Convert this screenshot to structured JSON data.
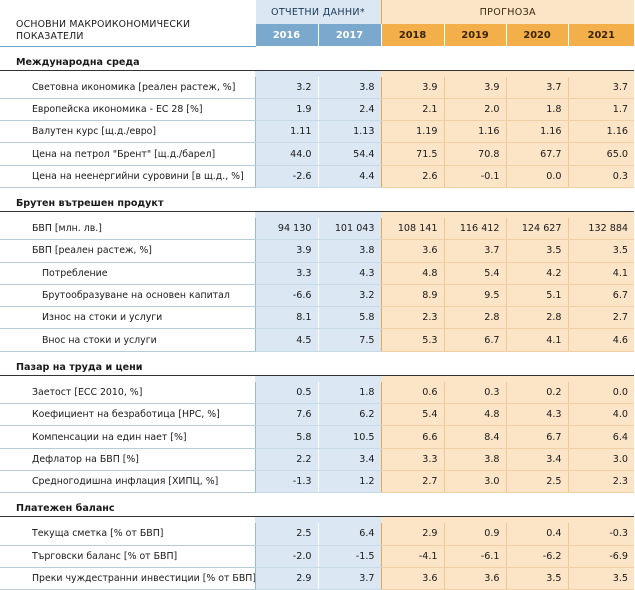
{
  "header": {
    "title": "ОСНОВНИ МАКРОИКОНОМИЧЕСКИ ПОКАЗАТЕЛИ",
    "title_line1": "ОСНОВНИ МАКРОИКОНОМИЧЕСКИ",
    "title_line2": "ПОКАЗАТЕЛИ",
    "actual_label": "ОТЧЕТНИ ДАННИ*",
    "forecast_label": "ПРОГНОЗА",
    "years": [
      "2016",
      "2017",
      "2018",
      "2019",
      "2020",
      "2021"
    ]
  },
  "sections": [
    {
      "title": "Международна среда",
      "rows": [
        {
          "label": "Световна икономика [реален растеж, %]",
          "values": [
            "3.2",
            "3.8",
            "3.9",
            "3.9",
            "3.7",
            "3.7"
          ]
        },
        {
          "label": "Европейска икономика - ЕС 28 [%]",
          "values": [
            "1.9",
            "2.4",
            "2.1",
            "2.0",
            "1.8",
            "1.7"
          ]
        },
        {
          "label": "Валутен курс [щ.д./евро]",
          "values": [
            "1.11",
            "1.13",
            "1.19",
            "1.16",
            "1.16",
            "1.16"
          ]
        },
        {
          "label": "Цена на петрол \"Брент\" [щ.д./барел]",
          "values": [
            "44.0",
            "54.4",
            "71.5",
            "70.8",
            "67.7",
            "65.0"
          ]
        },
        {
          "label": "Цена на неенергийни суровини [в щ.д., %]",
          "values": [
            "-2.6",
            "4.4",
            "2.6",
            "-0.1",
            "0.0",
            "0.3"
          ]
        }
      ]
    },
    {
      "title": "Брутен вътрешен продукт",
      "rows": [
        {
          "label": "БВП [млн. лв.]",
          "values": [
            "94 130",
            "101 043",
            "108 141",
            "116 412",
            "124 627",
            "132 884"
          ]
        },
        {
          "label": "БВП [реален растеж, %]",
          "values": [
            "3.9",
            "3.8",
            "3.6",
            "3.7",
            "3.5",
            "3.5"
          ]
        },
        {
          "label": "Потребление",
          "values": [
            "3.3",
            "4.3",
            "4.8",
            "5.4",
            "4.2",
            "4.1"
          ],
          "sub": true
        },
        {
          "label": "Брутообразуване на основен капитал",
          "values": [
            "-6.6",
            "3.2",
            "8.9",
            "9.5",
            "5.1",
            "6.7"
          ],
          "sub": true
        },
        {
          "label": "Износ на стоки и услуги",
          "values": [
            "8.1",
            "5.8",
            "2.3",
            "2.8",
            "2.8",
            "2.7"
          ],
          "sub": true
        },
        {
          "label": "Внос на стоки и услуги",
          "values": [
            "4.5",
            "7.5",
            "5.3",
            "6.7",
            "4.1",
            "4.6"
          ],
          "sub": true
        }
      ]
    },
    {
      "title": "Пазар на труда и цени",
      "rows": [
        {
          "label": "Заетост [ЕСС 2010, %]",
          "values": [
            "0.5",
            "1.8",
            "0.6",
            "0.3",
            "0.2",
            "0.0"
          ]
        },
        {
          "label": "Коефициент на безработица [НРС, %]",
          "values": [
            "7.6",
            "6.2",
            "5.4",
            "4.8",
            "4.3",
            "4.0"
          ]
        },
        {
          "label": "Компенсации на един нает [%]",
          "values": [
            "5.8",
            "10.5",
            "6.6",
            "8.4",
            "6.7",
            "6.4"
          ]
        },
        {
          "label": "Дефлатор на БВП [%]",
          "values": [
            "2.2",
            "3.4",
            "3.3",
            "3.8",
            "3.4",
            "3.0"
          ]
        },
        {
          "label": "Средногодишна инфлация [ХИПЦ, %]",
          "values": [
            "-1.3",
            "1.2",
            "2.7",
            "3.0",
            "2.5",
            "2.3"
          ]
        }
      ]
    },
    {
      "title": "Платежен баланс",
      "rows": [
        {
          "label": "Текуща сметка [% от БВП]",
          "values": [
            "2.5",
            "6.4",
            "2.9",
            "0.9",
            "0.4",
            "-0.3"
          ]
        },
        {
          "label": "Търговски баланс [% от БВП]",
          "values": [
            "-2.0",
            "-1.5",
            "-4.1",
            "-6.1",
            "-6.2",
            "-6.9"
          ]
        },
        {
          "label": "Преки чуждестранни инвестиции [% от БВП]",
          "values": [
            "2.9",
            "3.7",
            "3.6",
            "3.6",
            "3.5",
            "3.5"
          ]
        }
      ]
    }
  ],
  "colors": {
    "actual_header": "#7ba9cd",
    "actual_cell": "#dbe8f3",
    "forecast_header": "#f3b04a",
    "forecast_cell": "#fce4c7"
  }
}
